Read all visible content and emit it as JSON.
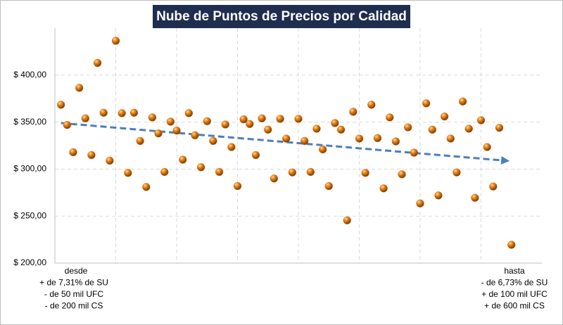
{
  "chart_data": {
    "type": "scatter",
    "title": "Nube de Puntos de Precios por Calidad",
    "x": [
      1,
      2,
      3,
      4,
      5,
      6,
      7,
      8,
      9,
      10,
      11,
      12,
      13,
      14,
      15,
      16,
      17,
      18,
      19,
      20,
      21,
      22,
      23,
      24,
      25,
      26,
      27,
      28,
      29,
      30,
      31,
      32,
      33,
      34,
      35,
      36,
      37,
      38,
      39,
      40,
      41,
      42,
      43,
      44,
      45,
      46,
      47,
      48,
      49,
      50,
      51,
      52,
      53,
      54,
      55,
      56,
      57,
      58,
      59,
      60,
      61,
      62,
      63,
      64,
      65,
      66,
      67,
      68,
      69,
      70,
      71,
      72,
      73,
      75
    ],
    "values": [
      368.5,
      347,
      318,
      386.5,
      354,
      315,
      413,
      360,
      309,
      436.5,
      359.5,
      296,
      360,
      330,
      281,
      355,
      338,
      297,
      350.5,
      341,
      310,
      359.5,
      336,
      302,
      351,
      330,
      297,
      347.5,
      323.5,
      282,
      353,
      348,
      315,
      354,
      342,
      290,
      353.5,
      332.5,
      296.5,
      353.5,
      330,
      297,
      343,
      321,
      282,
      349,
      342,
      245.5,
      361,
      332.5,
      296,
      368.5,
      333,
      279.5,
      355,
      329.5,
      294.5,
      344.5,
      317.5,
      263.5,
      370,
      342,
      272,
      356,
      332.5,
      296.5,
      372,
      343,
      269.5,
      352,
      323.5,
      281.5,
      344,
      219.5
    ],
    "color": "#e07b10",
    "trendline": {
      "x": [
        1,
        74
      ],
      "values": [
        349,
        309
      ],
      "color": "#4a7ebf"
    },
    "xlim": [
      0,
      80
    ],
    "xticks": [
      10,
      20,
      30,
      40,
      50,
      60,
      70
    ],
    "ylim": [
      200,
      450
    ],
    "yticks": [
      {
        "value": 200,
        "label": "$ 200,00"
      },
      {
        "value": 250,
        "label": "$ 250,00"
      },
      {
        "value": 300,
        "label": "$ 300,00"
      },
      {
        "value": 350,
        "label": "$ 350,00"
      },
      {
        "value": 400,
        "label": "$ 400,00"
      }
    ],
    "grid": true,
    "annotations": {
      "left": [
        "desde",
        "+ de 7,31% de SU",
        "- de 50 mil UFC",
        "- de 200 mil CS"
      ],
      "right": [
        "hasta",
        "- de 6,73% de SU",
        "+ de 100 mil UFC",
        "+ de 600 mil CS"
      ]
    }
  }
}
